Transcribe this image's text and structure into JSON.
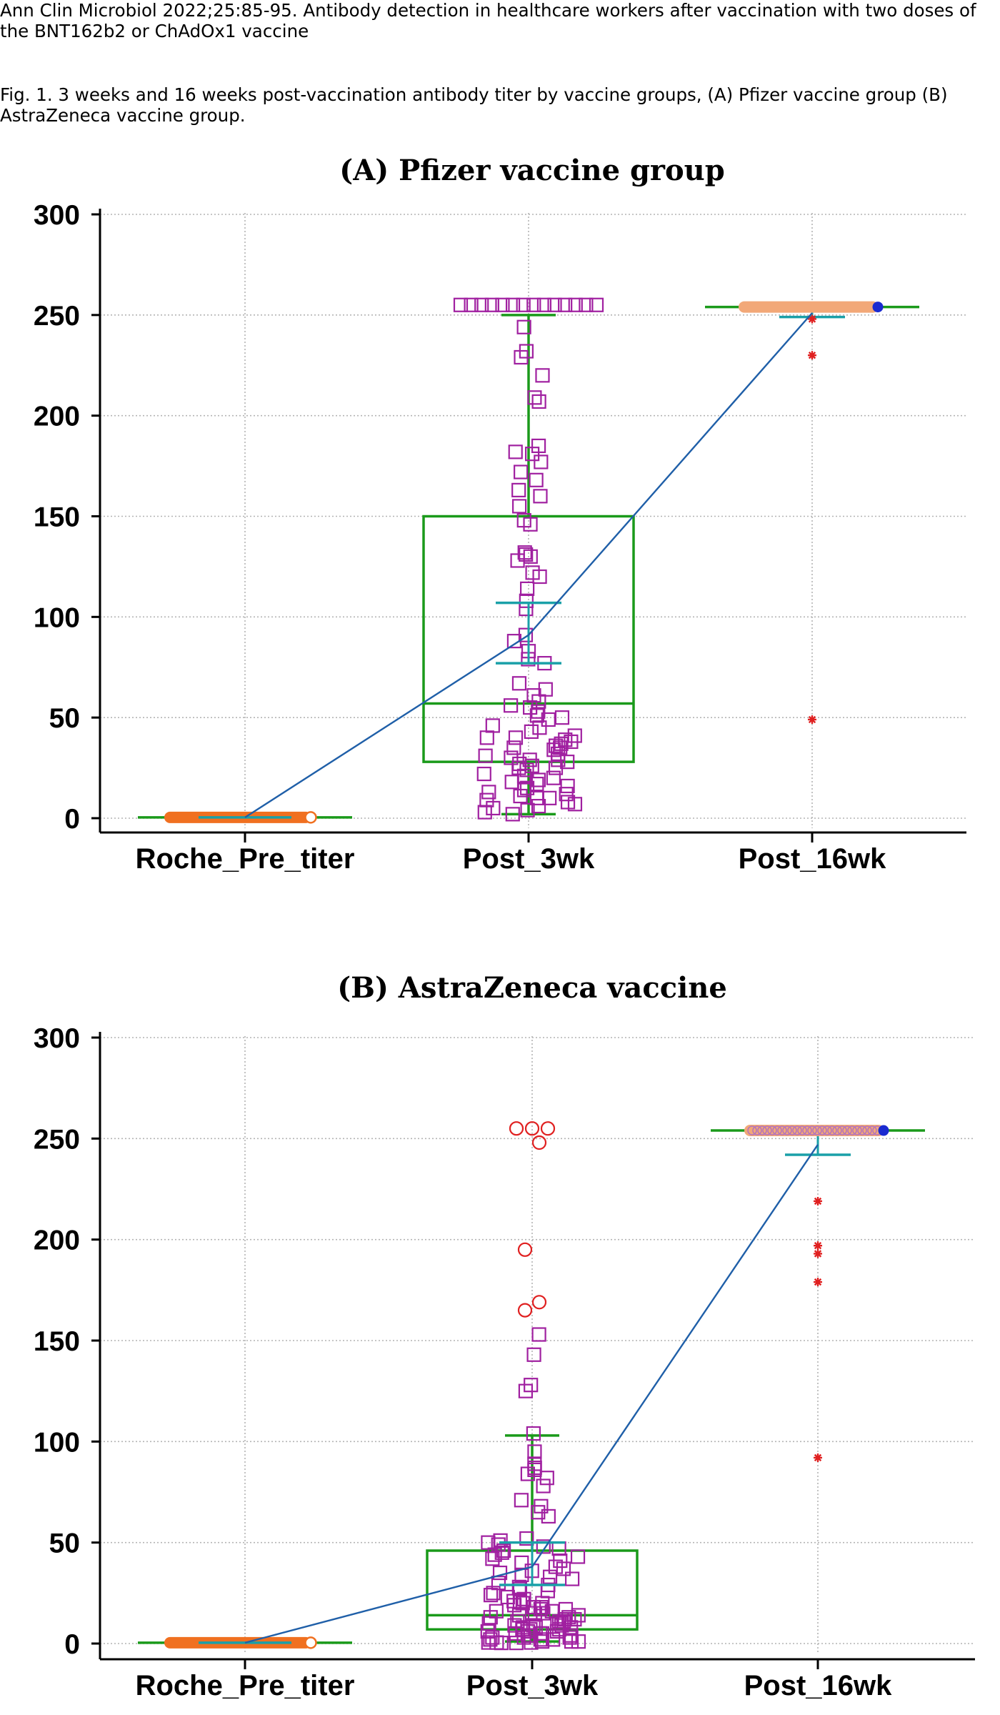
{
  "header": {
    "citation": "Ann Clin Microbiol 2022;25:85-95. Antibody detection in healthcare workers after vaccination with two doses of the BNT162b2 or ChAdOx1 vaccine",
    "figure_caption": "Fig. 1. 3 weeks and 16 weeks post-vaccination antibody titer by vaccine groups, (A) Pfizer vaccine group (B) AstraZeneca vaccine group."
  },
  "colors": {
    "grid": "#b4b4b4",
    "box": "#1a9a1a",
    "whisker_cap": "#1a9a1a",
    "ci": "#1aa0a8",
    "connector": "#1f5fa8",
    "points": "#a020a0",
    "outlier_circle": "#e02020",
    "outlier_star": "#e02020",
    "pre_band": "#f07020",
    "post16_band": "#f2a878",
    "max_marker": "#1a2ad0"
  },
  "chart_data": [
    {
      "type": "box",
      "title": "(A) Pfizer vaccine group",
      "xlabel": "",
      "ylabel": "",
      "categories": [
        "Roche_Pre_titer",
        "Post_3wk",
        "Post_16wk"
      ],
      "ylim": [
        0,
        300
      ],
      "yticks": [
        0,
        50,
        100,
        150,
        200,
        250,
        300
      ],
      "grid": true,
      "boxes": [
        {
          "category": "Roche_Pre_titer",
          "q1": 0.4,
          "median": 0.4,
          "q3": 0.4,
          "whisker_low": 0.4,
          "whisker_high": 0.4,
          "ci_low": 0.4,
          "ci_high": 0.4,
          "mean": 0.4
        },
        {
          "category": "Post_3wk",
          "q1": 28,
          "median": 57,
          "q3": 150,
          "whisker_low": 2,
          "whisker_high": 250,
          "ci_low": 77,
          "ci_high": 107,
          "mean": 91
        },
        {
          "category": "Post_16wk",
          "q1": 254,
          "median": 254,
          "q3": 254,
          "whisker_low": 254,
          "whisker_high": 254,
          "ci_low": 249,
          "ci_high": 256,
          "mean": 251
        }
      ],
      "mean_line": [
        0.4,
        91,
        251
      ],
      "points": {
        "Post_3wk": [
          255,
          255,
          255,
          255,
          255,
          255,
          255,
          255,
          255,
          255,
          255,
          255,
          255,
          255,
          244,
          232,
          229,
          220,
          209,
          207,
          185,
          182,
          181,
          177,
          172,
          168,
          163,
          160,
          155,
          148,
          146,
          132,
          131,
          130,
          128,
          122,
          120,
          114,
          108,
          104,
          91,
          88,
          83,
          79,
          77,
          67,
          64,
          61,
          58,
          56,
          55,
          53,
          51,
          50,
          49,
          46,
          45,
          43,
          41,
          40,
          40,
          39,
          38,
          37,
          36,
          35,
          35,
          34,
          32,
          31,
          30,
          29,
          29,
          28,
          27,
          26,
          25,
          25,
          24,
          22,
          21,
          20,
          19,
          18,
          17,
          16,
          15,
          14,
          13,
          12,
          11,
          10,
          10,
          9,
          8,
          7,
          6,
          5,
          4,
          3,
          2
        ]
      },
      "outliers_star": {
        "Post_16wk": [
          248,
          230,
          49
        ]
      },
      "band_points": {
        "Roche_Pre_titer": 0.4,
        "Post_16wk": 254
      }
    },
    {
      "type": "box",
      "title": "(B) AstraZeneca vaccine",
      "xlabel": "",
      "ylabel": "",
      "categories": [
        "Roche_Pre_titer",
        "Post_3wk",
        "Post_16wk"
      ],
      "ylim": [
        0,
        300
      ],
      "yticks": [
        0,
        50,
        100,
        150,
        200,
        250,
        300
      ],
      "grid": true,
      "boxes": [
        {
          "category": "Roche_Pre_titer",
          "q1": 0.4,
          "median": 0.4,
          "q3": 0.4,
          "whisker_low": 0.4,
          "whisker_high": 0.4,
          "ci_low": 0.4,
          "ci_high": 0.4,
          "mean": 0.4
        },
        {
          "category": "Post_3wk",
          "q1": 7,
          "median": 14,
          "q3": 46,
          "whisker_low": 1,
          "whisker_high": 103,
          "ci_low": 29,
          "ci_high": 50,
          "mean": 38
        },
        {
          "category": "Post_16wk",
          "q1": 254,
          "median": 254,
          "q3": 254,
          "whisker_low": 254,
          "whisker_high": 254,
          "ci_low": 242,
          "ci_high": 254,
          "mean": 247
        }
      ],
      "mean_line": [
        0.4,
        38,
        247
      ],
      "points": {
        "Post_3wk": [
          153,
          143,
          128,
          125,
          104,
          95,
          89,
          87,
          86,
          84,
          82,
          78,
          71,
          68,
          65,
          63,
          52,
          51,
          50,
          49,
          48,
          47,
          46,
          45,
          44,
          43,
          42,
          41,
          40,
          38,
          37,
          36,
          35,
          34,
          33,
          32,
          30,
          29,
          28,
          27,
          26,
          25,
          24,
          23,
          22,
          21,
          21,
          20,
          20,
          19,
          18,
          18,
          17,
          17,
          16,
          16,
          15,
          15,
          14,
          14,
          13,
          13,
          12,
          12,
          11,
          11,
          11,
          10,
          10,
          10,
          9,
          9,
          9,
          8,
          8,
          8,
          7,
          7,
          7,
          6,
          6,
          6,
          5,
          5,
          5,
          4,
          4,
          4,
          3,
          3,
          3,
          2,
          2,
          2,
          1,
          1,
          1,
          0.5,
          0.5,
          0.5,
          0.3,
          0.3
        ]
      },
      "outliers_circle": {
        "Post_3wk": [
          255,
          255,
          255,
          248,
          195,
          169,
          165
        ]
      },
      "outliers_star": {
        "Post_16wk": [
          219,
          197,
          193,
          179,
          92
        ]
      },
      "band_points": {
        "Roche_Pre_titer": 0.4,
        "Post_16wk": 254
      }
    }
  ]
}
